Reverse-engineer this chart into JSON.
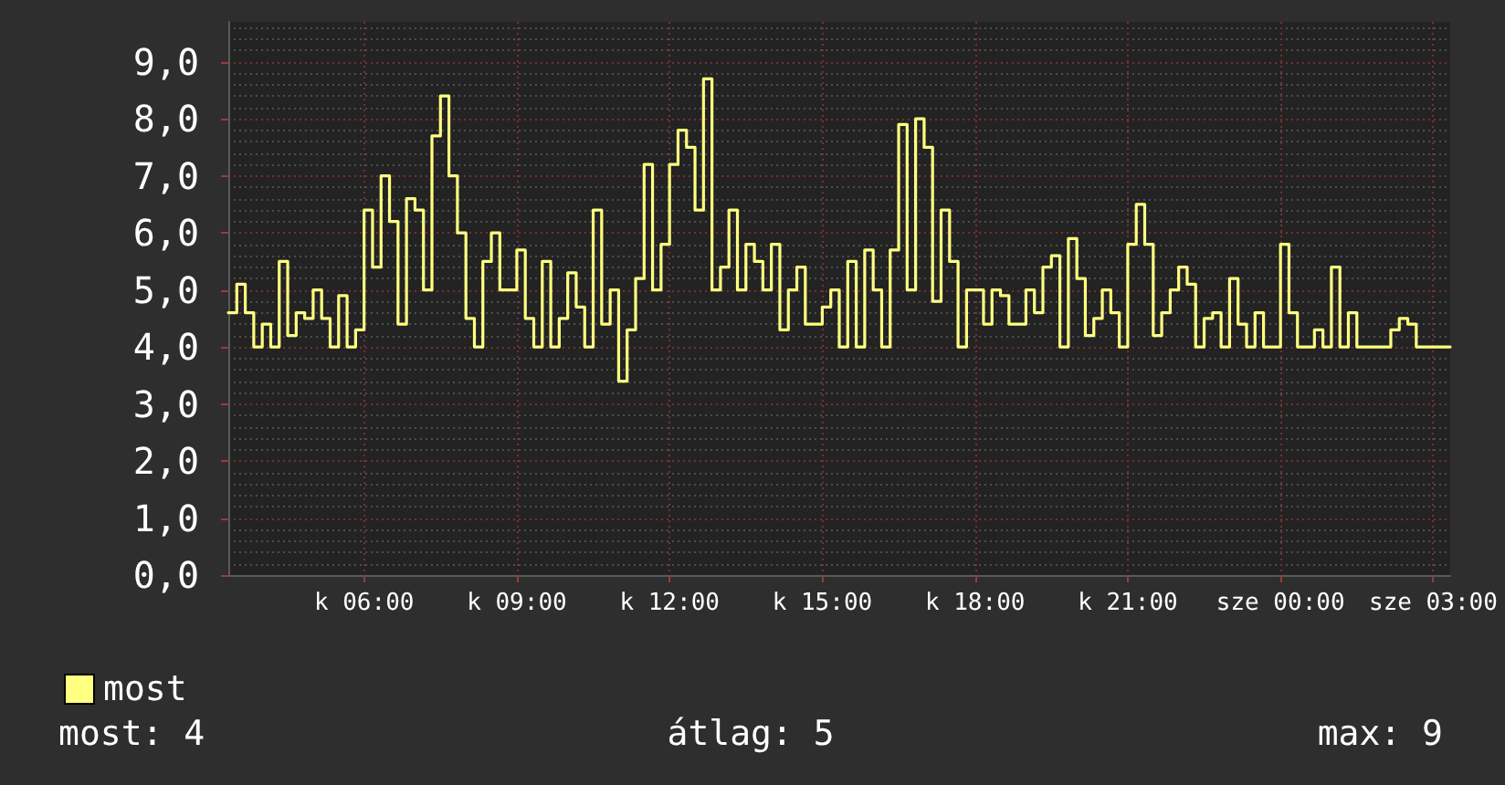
{
  "chart_data": {
    "type": "step",
    "categories": [
      null,
      null,
      null,
      null,
      null,
      null,
      null,
      null,
      null,
      null,
      null,
      null,
      null,
      null,
      null,
      null,
      "k 06:00",
      null,
      null,
      null,
      null,
      null,
      null,
      null,
      null,
      null,
      null,
      null,
      null,
      null,
      null,
      null,
      null,
      null,
      "k 09:00",
      null,
      null,
      null,
      null,
      null,
      null,
      null,
      null,
      null,
      null,
      null,
      null,
      null,
      null,
      null,
      null,
      null,
      "k 12:00",
      null,
      null,
      null,
      null,
      null,
      null,
      null,
      null,
      null,
      null,
      null,
      null,
      null,
      null,
      null,
      null,
      null,
      "k 15:00",
      null,
      null,
      null,
      null,
      null,
      null,
      null,
      null,
      null,
      null,
      null,
      null,
      null,
      null,
      null,
      null,
      null,
      "k 18:00",
      null,
      null,
      null,
      null,
      null,
      null,
      null,
      null,
      null,
      null,
      null,
      null,
      null,
      null,
      null,
      null,
      null,
      "k 21:00",
      null,
      null,
      null,
      null,
      null,
      null,
      null,
      null,
      null,
      null,
      null,
      null,
      null,
      null,
      null,
      null,
      null,
      "sze 00:00",
      null,
      null,
      null,
      null,
      null,
      null,
      null,
      null,
      null,
      null,
      null,
      null,
      null,
      null,
      null,
      null,
      null,
      "sze 03:00",
      null,
      null
    ],
    "series": [
      {
        "name": "most",
        "color": "#ffff80",
        "values": [
          4.6,
          5.1,
          4.6,
          4.0,
          4.4,
          4.0,
          5.5,
          4.2,
          4.6,
          4.5,
          5.0,
          4.5,
          4.0,
          4.9,
          4.0,
          4.3,
          6.4,
          5.4,
          7.0,
          6.2,
          4.4,
          6.6,
          6.4,
          5.0,
          7.7,
          8.4,
          7.0,
          6.0,
          4.5,
          4.0,
          5.5,
          6.0,
          5.0,
          5.0,
          5.7,
          4.5,
          4.0,
          5.5,
          4.0,
          4.5,
          5.3,
          4.7,
          4.0,
          6.4,
          4.4,
          5.0,
          3.4,
          4.3,
          5.2,
          7.2,
          5.0,
          5.8,
          7.2,
          7.8,
          7.5,
          6.4,
          8.7,
          5.0,
          5.4,
          6.4,
          5.0,
          5.8,
          5.5,
          5.0,
          5.8,
          4.3,
          5.0,
          5.4,
          4.4,
          4.4,
          4.7,
          5.0,
          4.0,
          5.5,
          4.0,
          5.7,
          5.0,
          4.0,
          5.7,
          7.9,
          5.0,
          8.0,
          7.5,
          4.8,
          6.4,
          5.5,
          4.0,
          5.0,
          5.0,
          4.4,
          5.0,
          4.9,
          4.4,
          4.4,
          5.0,
          4.6,
          5.4,
          5.6,
          4.0,
          5.9,
          5.2,
          4.2,
          4.5,
          5.0,
          4.6,
          4.0,
          5.8,
          6.5,
          5.8,
          4.2,
          4.6,
          5.0,
          5.4,
          5.1,
          4.0,
          4.5,
          4.6,
          4.0,
          5.2,
          4.4,
          4.0,
          4.6,
          4.0,
          4.0,
          5.8,
          4.6,
          4.0,
          4.0,
          4.3,
          4.0,
          5.4,
          4.0,
          4.6,
          4.0,
          4.0,
          4.0,
          4.0,
          4.3,
          4.5,
          4.4,
          4.0,
          4.0,
          4.0,
          4.0,
          4.0
        ]
      }
    ],
    "ylim": [
      0,
      9.7
    ],
    "yticks": [
      {
        "value": 0,
        "label": "0,0"
      },
      {
        "value": 1,
        "label": "1,0"
      },
      {
        "value": 2,
        "label": "2,0"
      },
      {
        "value": 3,
        "label": "3,0"
      },
      {
        "value": 4,
        "label": "4,0"
      },
      {
        "value": 5,
        "label": "5,0"
      },
      {
        "value": 6,
        "label": "6,0"
      },
      {
        "value": 7,
        "label": "7,0"
      },
      {
        "value": 8,
        "label": "8,0"
      },
      {
        "value": 9,
        "label": "9,0"
      }
    ],
    "grid": true,
    "legend": "bottom left",
    "marker": "none",
    "line_style": "solid",
    "annotations": [
      "most: 4",
      "átlag: 5",
      "max: 9"
    ]
  }
}
